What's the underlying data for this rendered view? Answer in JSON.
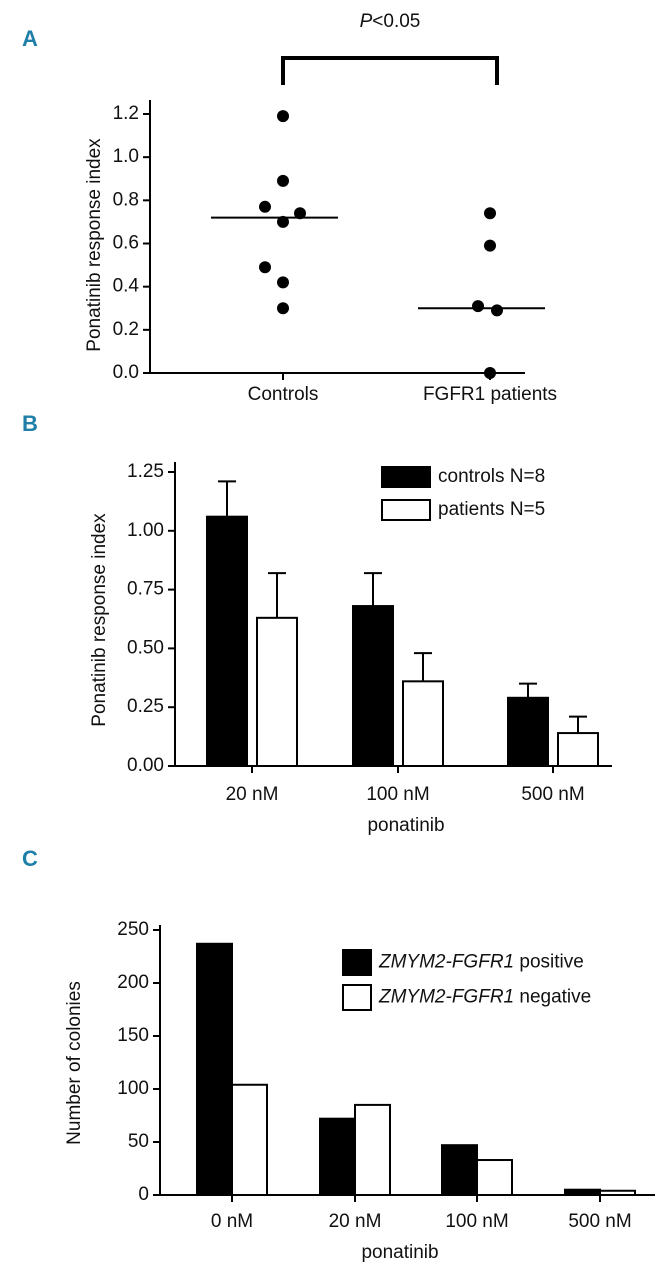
{
  "chart_data": [
    {
      "type": "dot",
      "panel_label": "A",
      "annotation": "P<0.05",
      "ylabel": "Ponatinib response index",
      "categories": [
        "Controls",
        "FGFR1 patients"
      ],
      "values": [
        [
          1.19,
          0.89,
          0.77,
          0.74,
          0.7,
          0.49,
          0.42,
          0.3
        ],
        [
          0.74,
          0.59,
          0.31,
          0.29,
          0.0
        ]
      ],
      "medians": [
        0.72,
        0.3
      ],
      "color": "#000000",
      "ylim": [
        0,
        1.2
      ],
      "yticks": [
        {
          "value": 0,
          "label": "0.0"
        },
        0.2,
        0.4,
        0.6,
        0.8,
        {
          "value": 1,
          "label": "1.0"
        },
        1.2
      ]
    },
    {
      "type": "bar",
      "panel_label": "B",
      "ylabel": "Ponatinib response index",
      "xlabel": "ponatinib",
      "categories": [
        "20 nM",
        "100 nM",
        "500 nM"
      ],
      "series": [
        {
          "name": "controls N=8",
          "color": "#000000",
          "values": [
            1.06,
            0.68,
            0.29
          ],
          "errors": [
            0.15,
            0.14,
            0.06
          ]
        },
        {
          "name": "patients N=5",
          "color": "#ffffff",
          "values": [
            0.63,
            0.36,
            0.14
          ],
          "errors": [
            0.19,
            0.12,
            0.07
          ]
        }
      ],
      "ylim": [
        0,
        1.25
      ],
      "yticks": [
        {
          "value": 0,
          "label": "0.00"
        },
        0.25,
        {
          "value": 0.5,
          "label": "0.50"
        },
        0.75,
        {
          "value": 1,
          "label": "1.00"
        },
        1.25
      ]
    },
    {
      "type": "bar",
      "panel_label": "C",
      "ylabel": "Number of colonies",
      "xlabel": "ponatinib",
      "categories": [
        "0 nM",
        "20 nM",
        "100 nM",
        "500 nM"
      ],
      "series": [
        {
          "name": "ZMYM2-FGFR1 positive",
          "color": "#000000",
          "values": [
            237,
            72,
            47,
            5
          ]
        },
        {
          "name": "ZMYM2-FGFR1 negative",
          "color": "#ffffff",
          "values": [
            104,
            85,
            33,
            4
          ]
        }
      ],
      "ylim": [
        0,
        250
      ],
      "yticks": [
        0,
        50,
        100,
        150,
        200,
        250
      ]
    }
  ]
}
